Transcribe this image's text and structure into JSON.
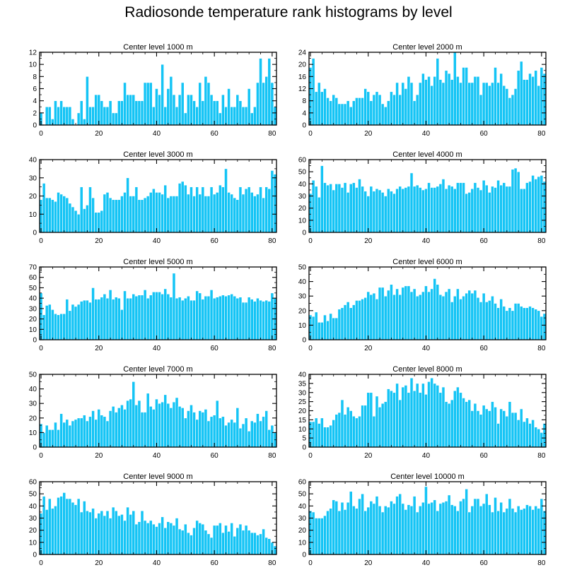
{
  "title": "Radiosonde temperature rank histograms by level",
  "colors": {
    "bar": "#14C4F5",
    "bar_edge": "#ffffff",
    "axis": "#000000"
  },
  "chart_data": [
    {
      "type": "bar",
      "title": "Center level 1000 m",
      "xlim": [
        -0.5,
        81.5
      ],
      "ylim": [
        0,
        12
      ],
      "xticks": [
        0,
        20,
        40,
        60,
        80
      ],
      "yticks": [
        0,
        2,
        4,
        6,
        8,
        10,
        12
      ],
      "values": [
        2,
        0,
        3,
        3,
        1,
        4,
        3,
        4,
        3,
        3,
        3,
        1,
        0,
        2,
        4,
        1,
        8,
        3,
        3,
        5,
        5,
        4,
        3,
        3,
        4,
        2,
        2,
        4,
        4,
        7,
        5,
        5,
        5,
        4,
        4,
        4,
        7,
        7,
        7,
        3,
        6,
        5,
        10,
        3,
        6,
        8,
        5,
        3,
        5,
        7,
        2,
        5,
        5,
        4,
        3,
        7,
        4,
        8,
        7,
        5,
        4,
        4,
        2,
        5,
        3,
        6,
        3,
        3,
        5,
        4,
        3,
        3,
        6,
        2,
        3,
        7,
        11,
        7,
        8,
        11,
        7,
        3
      ]
    },
    {
      "type": "bar",
      "title": "Center level 2000 m",
      "xlim": [
        -0.5,
        81.5
      ],
      "ylim": [
        0,
        24
      ],
      "xticks": [
        0,
        20,
        40,
        60,
        80
      ],
      "yticks": [
        0,
        4,
        8,
        12,
        16,
        20,
        24
      ],
      "values": [
        19,
        22,
        11,
        14,
        11,
        12,
        9,
        8,
        10,
        9,
        7,
        7,
        7,
        8,
        6,
        8,
        9,
        9,
        9,
        12,
        11,
        8,
        10,
        11,
        10,
        7,
        6,
        8,
        11,
        10,
        14,
        10,
        14,
        12,
        16,
        14,
        8,
        10,
        14,
        17,
        15,
        16,
        13,
        16,
        22,
        15,
        14,
        18,
        17,
        15,
        24,
        16,
        14,
        19,
        19,
        14,
        14,
        16,
        16,
        10,
        14,
        14,
        13,
        14,
        19,
        14,
        17,
        13,
        12,
        9,
        10,
        12,
        18,
        21,
        15,
        15,
        17,
        16,
        18,
        13,
        19,
        17
      ]
    },
    {
      "type": "bar",
      "title": "Center level 3000 m",
      "xlim": [
        -0.5,
        81.5
      ],
      "ylim": [
        0,
        40
      ],
      "xticks": [
        0,
        20,
        40,
        60,
        80
      ],
      "yticks": [
        0,
        10,
        20,
        30,
        40
      ],
      "values": [
        18,
        27,
        19,
        19,
        18,
        17,
        22,
        21,
        20,
        19,
        16,
        14,
        12,
        10,
        25,
        13,
        15,
        25,
        19,
        11,
        11,
        12,
        21,
        22,
        19,
        18,
        18,
        18,
        20,
        22,
        30,
        20,
        20,
        25,
        18,
        18,
        19,
        20,
        22,
        24,
        22,
        22,
        21,
        26,
        19,
        20,
        20,
        20,
        27,
        28,
        26,
        21,
        25,
        20,
        25,
        21,
        25,
        20,
        20,
        25,
        21,
        22,
        26,
        25,
        35,
        22,
        21,
        19,
        18,
        25,
        21,
        24,
        25,
        22,
        20,
        21,
        25,
        19,
        25,
        24,
        34,
        32
      ]
    },
    {
      "type": "bar",
      "title": "Center level 4000 m",
      "xlim": [
        -0.5,
        81.5
      ],
      "ylim": [
        0,
        60
      ],
      "xticks": [
        0,
        20,
        40,
        60,
        80
      ],
      "yticks": [
        0,
        10,
        20,
        30,
        40,
        50,
        60
      ],
      "values": [
        32,
        43,
        38,
        29,
        55,
        41,
        39,
        40,
        35,
        40,
        40,
        37,
        41,
        33,
        40,
        41,
        37,
        44,
        38,
        34,
        30,
        38,
        34,
        36,
        35,
        33,
        30,
        36,
        34,
        32,
        36,
        38,
        36,
        37,
        38,
        49,
        38,
        39,
        37,
        35,
        36,
        41,
        37,
        37,
        38,
        40,
        44,
        36,
        39,
        38,
        36,
        41,
        41,
        41,
        32,
        33,
        36,
        41,
        37,
        35,
        43,
        39,
        33,
        38,
        37,
        43,
        39,
        41,
        38,
        38,
        52,
        53,
        50,
        36,
        36,
        41,
        42,
        47,
        44,
        46,
        47,
        42
      ]
    },
    {
      "type": "bar",
      "title": "Center level 5000 m",
      "xlim": [
        -0.5,
        81.5
      ],
      "ylim": [
        0,
        70
      ],
      "xticks": [
        0,
        20,
        40,
        60,
        80
      ],
      "yticks": [
        0,
        10,
        20,
        30,
        40,
        50,
        60,
        70
      ],
      "values": [
        45,
        24,
        33,
        34,
        29,
        25,
        24,
        25,
        25,
        39,
        28,
        34,
        32,
        34,
        37,
        38,
        38,
        36,
        50,
        39,
        39,
        41,
        44,
        40,
        48,
        39,
        41,
        40,
        29,
        47,
        40,
        40,
        44,
        42,
        43,
        43,
        48,
        40,
        43,
        46,
        46,
        46,
        44,
        49,
        44,
        41,
        64,
        40,
        41,
        38,
        40,
        42,
        38,
        38,
        47,
        45,
        39,
        42,
        42,
        48,
        40,
        41,
        42,
        43,
        42,
        43,
        44,
        42,
        40,
        41,
        36,
        36,
        41,
        39,
        37,
        40,
        38,
        37,
        38,
        37,
        45,
        40
      ]
    },
    {
      "type": "bar",
      "title": "Center level 6000 m",
      "xlim": [
        -0.5,
        81.5
      ],
      "ylim": [
        0,
        50
      ],
      "xticks": [
        0,
        20,
        40,
        60,
        80
      ],
      "yticks": [
        0,
        10,
        20,
        30,
        40,
        50
      ],
      "values": [
        17,
        16,
        19,
        12,
        12,
        17,
        13,
        18,
        15,
        15,
        21,
        22,
        24,
        26,
        22,
        24,
        27,
        27,
        28,
        29,
        33,
        31,
        32,
        28,
        36,
        36,
        30,
        34,
        38,
        31,
        35,
        31,
        36,
        37,
        37,
        33,
        35,
        30,
        31,
        33,
        37,
        33,
        35,
        42,
        38,
        31,
        30,
        33,
        35,
        26,
        30,
        35,
        28,
        30,
        32,
        34,
        32,
        34,
        29,
        26,
        32,
        26,
        27,
        30,
        25,
        22,
        28,
        23,
        20,
        22,
        20,
        25,
        25,
        23,
        22,
        22,
        23,
        22,
        21,
        20,
        16,
        18
      ]
    },
    {
      "type": "bar",
      "title": "Center level 7000 m",
      "xlim": [
        -0.5,
        81.5
      ],
      "ylim": [
        0,
        50
      ],
      "xticks": [
        0,
        20,
        40,
        60,
        80
      ],
      "yticks": [
        0,
        10,
        20,
        30,
        40,
        50
      ],
      "values": [
        16,
        10,
        15,
        12,
        12,
        17,
        12,
        23,
        17,
        19,
        15,
        18,
        19,
        20,
        20,
        22,
        18,
        21,
        25,
        19,
        26,
        22,
        21,
        18,
        25,
        28,
        24,
        27,
        29,
        26,
        32,
        33,
        45,
        29,
        32,
        24,
        24,
        37,
        28,
        26,
        33,
        30,
        31,
        36,
        30,
        27,
        31,
        34,
        28,
        27,
        20,
        25,
        29,
        24,
        19,
        25,
        24,
        26,
        18,
        21,
        22,
        32,
        20,
        21,
        15,
        17,
        19,
        17,
        27,
        13,
        16,
        20,
        11,
        18,
        17,
        23,
        18,
        21,
        25,
        12,
        15,
        10
      ]
    },
    {
      "type": "bar",
      "title": "Center level 8000 m",
      "xlim": [
        -0.5,
        81.5
      ],
      "ylim": [
        0,
        40
      ],
      "xticks": [
        0,
        20,
        40,
        60,
        80
      ],
      "yticks": [
        0,
        5,
        10,
        15,
        20,
        25,
        30,
        35,
        40
      ],
      "values": [
        14,
        14,
        16,
        13,
        16,
        11,
        11,
        12,
        15,
        18,
        19,
        26,
        18,
        22,
        20,
        17,
        16,
        17,
        23,
        23,
        30,
        30,
        17,
        28,
        22,
        24,
        25,
        32,
        31,
        30,
        35,
        26,
        33,
        34,
        30,
        38,
        31,
        35,
        30,
        35,
        29,
        36,
        38,
        35,
        34,
        30,
        33,
        25,
        24,
        26,
        31,
        33,
        30,
        27,
        25,
        26,
        20,
        24,
        20,
        18,
        23,
        21,
        20,
        25,
        22,
        13,
        21,
        20,
        17,
        25,
        19,
        19,
        15,
        21,
        14,
        16,
        13,
        15,
        11,
        10,
        8,
        13
      ]
    },
    {
      "type": "bar",
      "title": "Center level 9000 m",
      "xlim": [
        -0.5,
        81.5
      ],
      "ylim": [
        0,
        60
      ],
      "xticks": [
        0,
        20,
        40,
        60,
        80
      ],
      "yticks": [
        0,
        10,
        20,
        30,
        40,
        50,
        60
      ],
      "values": [
        34,
        48,
        37,
        46,
        38,
        40,
        47,
        48,
        51,
        46,
        46,
        43,
        41,
        46,
        35,
        44,
        36,
        35,
        38,
        30,
        34,
        36,
        32,
        36,
        30,
        39,
        36,
        32,
        33,
        28,
        39,
        33,
        36,
        25,
        27,
        36,
        28,
        26,
        28,
        25,
        23,
        26,
        31,
        22,
        27,
        26,
        24,
        30,
        21,
        20,
        25,
        18,
        16,
        22,
        28,
        26,
        25,
        20,
        17,
        14,
        24,
        24,
        26,
        18,
        24,
        19,
        26,
        15,
        22,
        25,
        20,
        24,
        20,
        18,
        18,
        16,
        17,
        21,
        14,
        13,
        10,
        7
      ]
    },
    {
      "type": "bar",
      "title": "Center level 10000 m",
      "xlim": [
        -0.5,
        81.5
      ],
      "ylim": [
        0,
        60
      ],
      "xticks": [
        0,
        20,
        40,
        60,
        80
      ],
      "yticks": [
        0,
        10,
        20,
        30,
        40,
        50,
        60
      ],
      "values": [
        36,
        35,
        30,
        30,
        30,
        32,
        36,
        38,
        45,
        44,
        36,
        43,
        37,
        43,
        52,
        40,
        38,
        46,
        50,
        36,
        39,
        44,
        42,
        48,
        40,
        35,
        40,
        39,
        44,
        42,
        48,
        50,
        42,
        37,
        41,
        40,
        48,
        35,
        40,
        43,
        56,
        42,
        43,
        45,
        36,
        42,
        43,
        44,
        49,
        41,
        40,
        36,
        44,
        46,
        54,
        35,
        40,
        46,
        46,
        40,
        42,
        50,
        41,
        35,
        47,
        36,
        43,
        35,
        38,
        46,
        38,
        35,
        40,
        37,
        38,
        41,
        40,
        37,
        40,
        38,
        46,
        36
      ]
    }
  ]
}
